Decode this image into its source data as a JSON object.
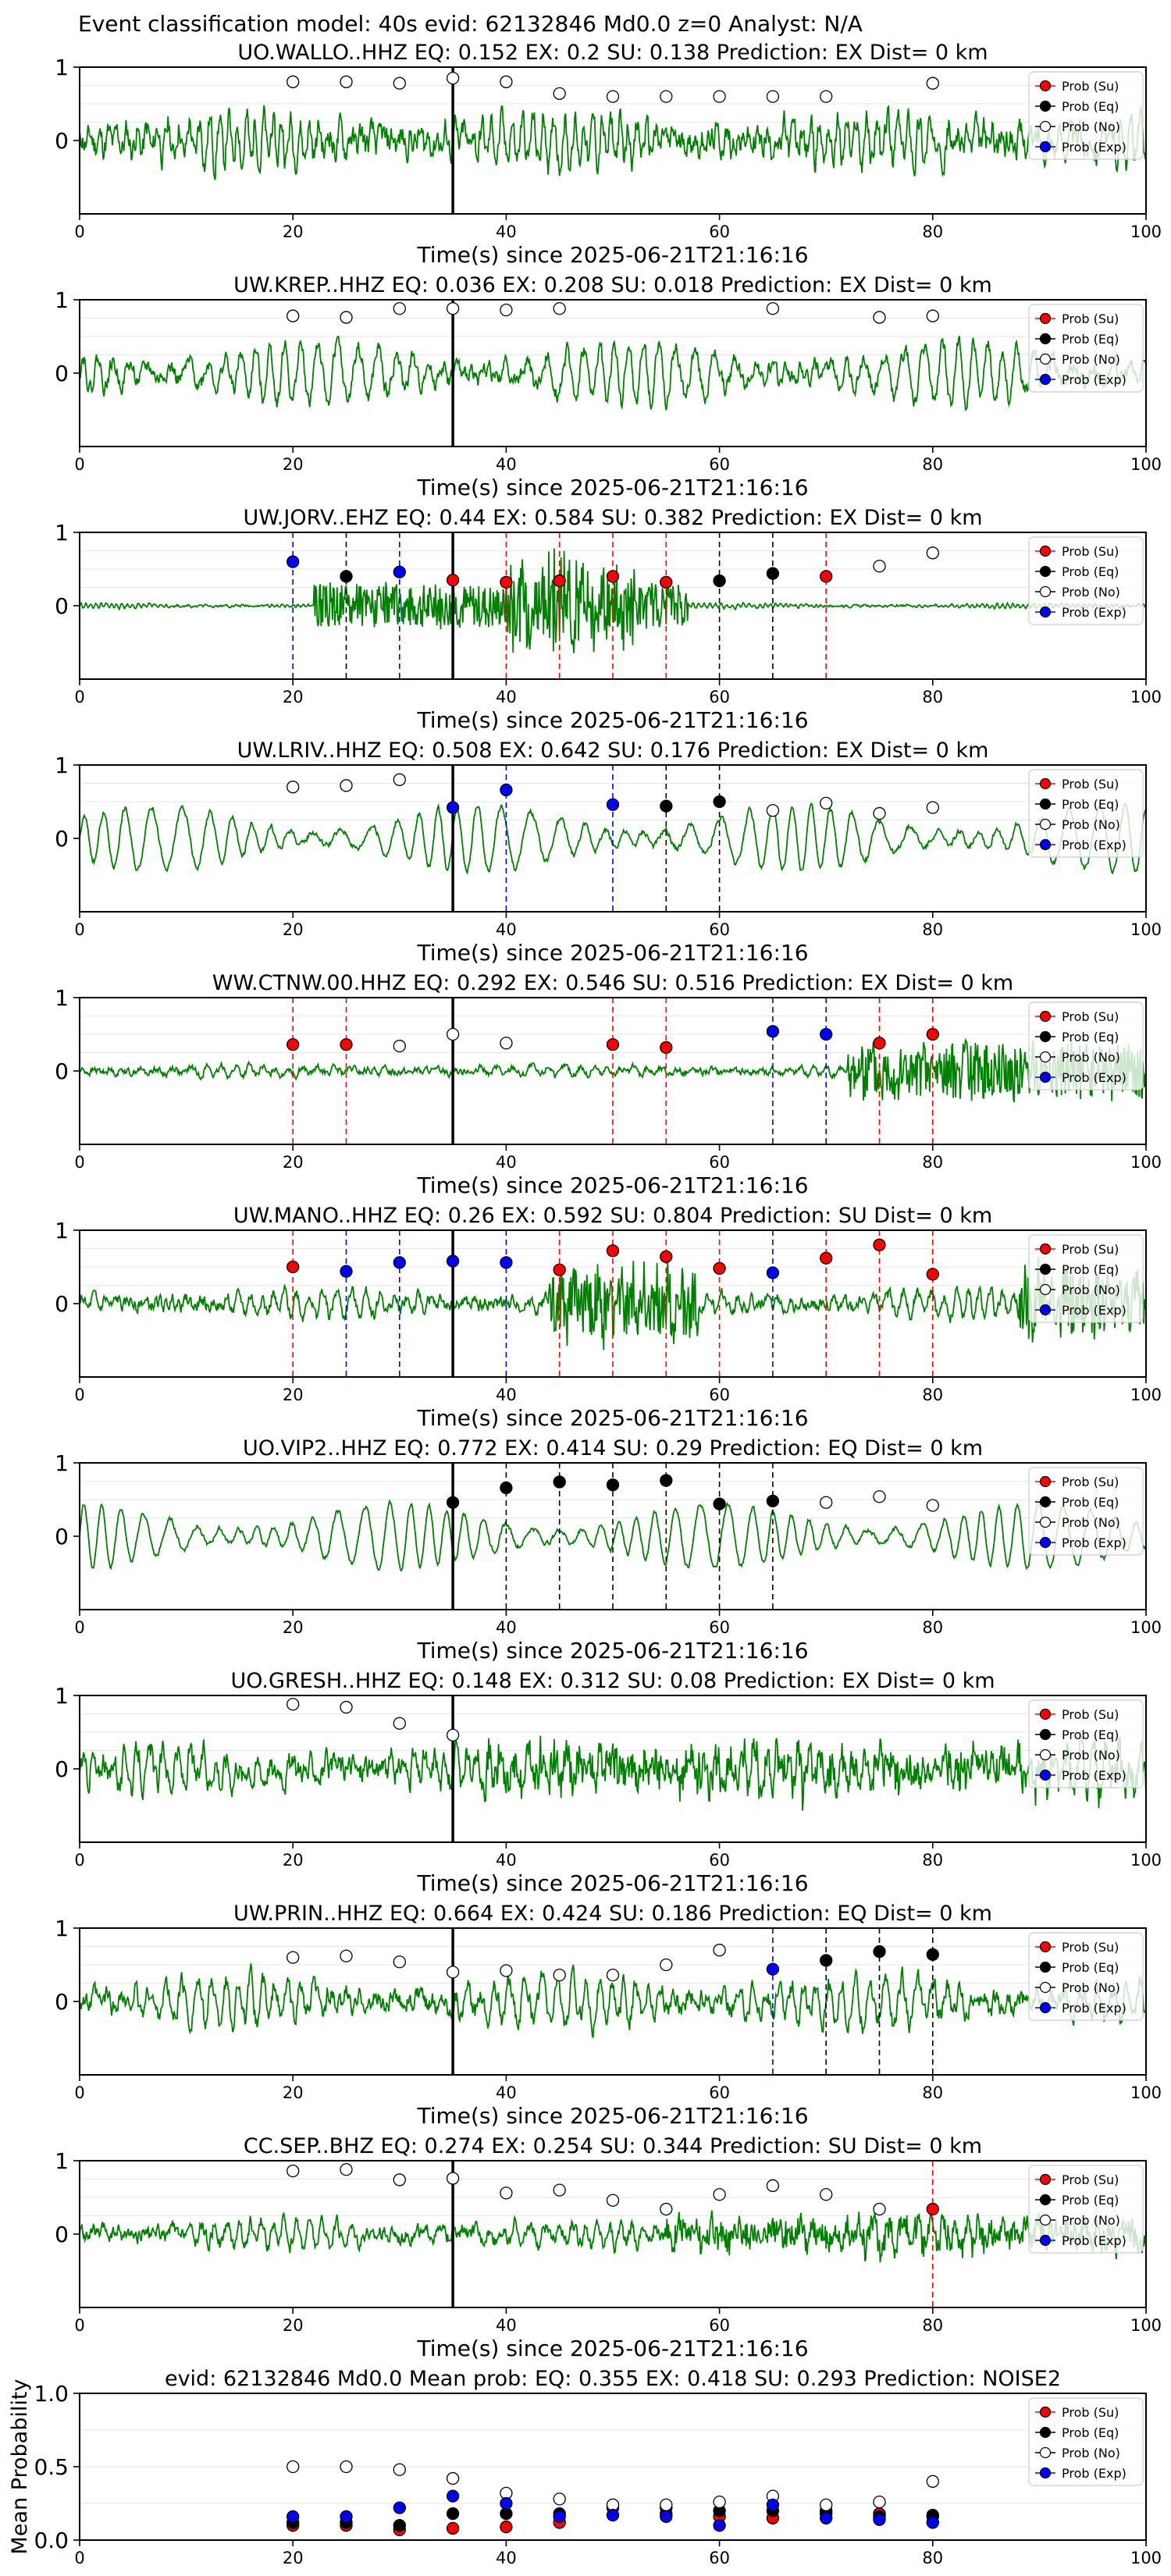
{
  "figure": {
    "suptitle": "Event classification model: 40s evid: 62132846 Md0.0 z=0 Analyst: N/A"
  },
  "colors": {
    "waveform": "#008000",
    "su": "#ff0000",
    "eq": "#000000",
    "no": "#ffffff",
    "exp": "#0000ff",
    "grid": "#e6e6e6"
  },
  "legend_labels": [
    "Prob (Su)",
    "Prob (Eq)",
    "Prob (No)",
    "Prob (Exp)"
  ],
  "xlabel": "Time(s) since 2025-06-21T21:16:16",
  "chart_data": [
    {
      "type": "scatter",
      "title": "UO.WALLO..HHZ   EQ: 0.152  EX: 0.2  SU: 0.138   Prediction: EX    Dist= 0 km",
      "xlim": [
        0,
        100
      ],
      "ylim": [
        -1,
        1
      ],
      "xticks": [
        0,
        20,
        40,
        60,
        80,
        100
      ],
      "yticks": [
        0,
        1
      ],
      "xlabel": "Time(s) since 2025-06-21T21:16:16",
      "event_time": 35,
      "waveform": {
        "amp": 0.55,
        "noise": 0.75,
        "period": 0.9,
        "seed": 11
      },
      "series": [
        {
          "name": "Prob (No)",
          "x": [
            20,
            25,
            30,
            35,
            40,
            45,
            50,
            55,
            60,
            65,
            70,
            80
          ],
          "y": [
            0.8,
            0.8,
            0.78,
            0.85,
            0.8,
            0.64,
            0.6,
            0.6,
            0.6,
            0.6,
            0.6,
            0.78
          ]
        }
      ],
      "lines": []
    },
    {
      "type": "scatter",
      "title": "UW.KREP..HHZ   EQ: 0.036  EX: 0.208  SU: 0.018   Prediction: EX    Dist= 0 km",
      "xlim": [
        0,
        100
      ],
      "ylim": [
        -1,
        1
      ],
      "xticks": [
        0,
        20,
        40,
        60,
        80,
        100
      ],
      "yticks": [
        0,
        1
      ],
      "xlabel": "Time(s) since 2025-06-21T21:16:16",
      "event_time": 35,
      "waveform": {
        "amp": 0.75,
        "noise": 0.45,
        "period": 1.6,
        "seed": 22
      },
      "series": [
        {
          "name": "Prob (No)",
          "x": [
            20,
            25,
            30,
            35,
            40,
            45,
            65,
            75,
            80
          ],
          "y": [
            0.78,
            0.76,
            0.88,
            0.88,
            0.86,
            0.88,
            0.88,
            0.76,
            0.78
          ]
        }
      ],
      "lines": []
    },
    {
      "type": "scatter",
      "title": "UW.JORV..EHZ   EQ: 0.44  EX: 0.584  SU: 0.382   Prediction: EX    Dist= 0 km",
      "xlim": [
        0,
        100
      ],
      "ylim": [
        -1,
        1
      ],
      "xticks": [
        0,
        20,
        40,
        60,
        80,
        100
      ],
      "yticks": [
        0,
        1
      ],
      "xlabel": "Time(s) since 2025-06-21T21:16:16",
      "event_time": 35,
      "waveform": {
        "amp": 0.05,
        "noise": 0.06,
        "period": 0.5,
        "seed": 33,
        "burst": [
          [
            22,
            57,
            0.55
          ],
          [
            40,
            52,
            0.9
          ]
        ]
      },
      "series": [
        {
          "name": "Prob (Exp)",
          "x": [
            20,
            30
          ],
          "y": [
            0.6,
            0.46
          ]
        },
        {
          "name": "Prob (Eq)",
          "x": [
            25,
            60,
            65
          ],
          "y": [
            0.4,
            0.34,
            0.44
          ]
        },
        {
          "name": "Prob (Su)",
          "x": [
            35,
            40,
            45,
            50,
            55,
            70
          ],
          "y": [
            0.35,
            0.32,
            0.34,
            0.4,
            0.32,
            0.4
          ]
        },
        {
          "name": "Prob (No)",
          "x": [
            75,
            80
          ],
          "y": [
            0.54,
            0.72
          ]
        }
      ],
      "lines": [
        {
          "x": 20,
          "c": "exp"
        },
        {
          "x": 25,
          "c": "eq"
        },
        {
          "x": 30,
          "c": "exp"
        },
        {
          "x": 40,
          "c": "su"
        },
        {
          "x": 45,
          "c": "su"
        },
        {
          "x": 50,
          "c": "su"
        },
        {
          "x": 55,
          "c": "su"
        },
        {
          "x": 60,
          "c": "eq"
        },
        {
          "x": 65,
          "c": "eq"
        },
        {
          "x": 70,
          "c": "su"
        }
      ]
    },
    {
      "type": "scatter",
      "title": "UW.LRIV..HHZ   EQ: 0.508  EX: 0.642  SU: 0.176   Prediction: EX    Dist= 0 km",
      "xlim": [
        0,
        100
      ],
      "ylim": [
        -1,
        1
      ],
      "xticks": [
        0,
        20,
        40,
        60,
        80,
        100
      ],
      "yticks": [
        0,
        1
      ],
      "xlabel": "Time(s) since 2025-06-21T21:16:16",
      "event_time": 35,
      "waveform": {
        "amp": 0.8,
        "noise": 0.15,
        "period": 2.2,
        "seed": 44
      },
      "series": [
        {
          "name": "Prob (No)",
          "x": [
            20,
            25,
            30,
            65,
            70,
            75,
            80
          ],
          "y": [
            0.7,
            0.72,
            0.8,
            0.38,
            0.48,
            0.34,
            0.42
          ]
        },
        {
          "name": "Prob (Exp)",
          "x": [
            35,
            40,
            50
          ],
          "y": [
            0.42,
            0.66,
            0.46
          ]
        },
        {
          "name": "Prob (Eq)",
          "x": [
            55,
            60
          ],
          "y": [
            0.44,
            0.5
          ]
        }
      ],
      "lines": [
        {
          "x": 40,
          "c": "exp"
        },
        {
          "x": 50,
          "c": "exp"
        },
        {
          "x": 55,
          "c": "eq"
        },
        {
          "x": 60,
          "c": "eq"
        }
      ]
    },
    {
      "type": "scatter",
      "title": "WW.CTNW.00.HHZ   EQ: 0.292  EX: 0.546  SU: 0.516   Prediction: EX    Dist= 0 km",
      "xlim": [
        0,
        100
      ],
      "ylim": [
        -1,
        1
      ],
      "xticks": [
        0,
        20,
        40,
        60,
        80,
        100
      ],
      "yticks": [
        0,
        1
      ],
      "xlabel": "Time(s) since 2025-06-21T21:16:16",
      "event_time": 35,
      "waveform": {
        "amp": 0.12,
        "noise": 0.18,
        "period": 1.4,
        "seed": 55,
        "burst": [
          [
            72,
            100,
            0.7
          ]
        ]
      },
      "series": [
        {
          "name": "Prob (Su)",
          "x": [
            20,
            25,
            50,
            55,
            75,
            80
          ],
          "y": [
            0.36,
            0.36,
            0.36,
            0.32,
            0.38,
            0.5
          ]
        },
        {
          "name": "Prob (No)",
          "x": [
            30,
            35,
            40
          ],
          "y": [
            0.34,
            0.5,
            0.38
          ]
        },
        {
          "name": "Prob (Exp)",
          "x": [
            65,
            70
          ],
          "y": [
            0.54,
            0.5
          ]
        }
      ],
      "lines": [
        {
          "x": 20,
          "c": "su"
        },
        {
          "x": 25,
          "c": "su"
        },
        {
          "x": 50,
          "c": "su"
        },
        {
          "x": 55,
          "c": "su"
        },
        {
          "x": 65,
          "c": "exp"
        },
        {
          "x": 70,
          "c": "exp"
        },
        {
          "x": 75,
          "c": "su"
        },
        {
          "x": 80,
          "c": "su"
        }
      ]
    },
    {
      "type": "scatter",
      "title": "UW.MANO..HHZ   EQ: 0.26  EX: 0.592  SU: 0.804   Prediction: SU    Dist= 0 km",
      "xlim": [
        0,
        100
      ],
      "ylim": [
        -1,
        1
      ],
      "xticks": [
        0,
        20,
        40,
        60,
        80,
        100
      ],
      "yticks": [
        0,
        1
      ],
      "xlabel": "Time(s) since 2025-06-21T21:16:16",
      "event_time": 35,
      "waveform": {
        "amp": 0.3,
        "noise": 0.35,
        "period": 1.2,
        "seed": 66,
        "burst": [
          [
            44,
            58,
            0.8
          ],
          [
            88,
            100,
            0.8
          ]
        ]
      },
      "series": [
        {
          "name": "Prob (Su)",
          "x": [
            20,
            45,
            50,
            55,
            60,
            70,
            75,
            80
          ],
          "y": [
            0.5,
            0.46,
            0.72,
            0.64,
            0.48,
            0.62,
            0.8,
            0.4
          ]
        },
        {
          "name": "Prob (Exp)",
          "x": [
            25,
            30,
            35,
            40,
            65
          ],
          "y": [
            0.44,
            0.56,
            0.58,
            0.56,
            0.42
          ]
        }
      ],
      "lines": [
        {
          "x": 20,
          "c": "su"
        },
        {
          "x": 25,
          "c": "exp"
        },
        {
          "x": 30,
          "c": "exp"
        },
        {
          "x": 40,
          "c": "exp"
        },
        {
          "x": 45,
          "c": "su"
        },
        {
          "x": 50,
          "c": "su"
        },
        {
          "x": 55,
          "c": "su"
        },
        {
          "x": 60,
          "c": "su"
        },
        {
          "x": 65,
          "c": "exp"
        },
        {
          "x": 70,
          "c": "su"
        },
        {
          "x": 75,
          "c": "su"
        },
        {
          "x": 80,
          "c": "su"
        }
      ]
    },
    {
      "type": "scatter",
      "title": "UO.VIP2..HHZ   EQ: 0.772  EX: 0.414  SU: 0.29   Prediction: EQ    Dist= 0 km",
      "xlim": [
        0,
        100
      ],
      "ylim": [
        -1,
        1
      ],
      "xticks": [
        0,
        20,
        40,
        60,
        80,
        100
      ],
      "yticks": [
        0,
        1
      ],
      "xlabel": "Time(s) since 2025-06-21T21:16:16",
      "event_time": 35,
      "waveform": {
        "amp": 0.8,
        "noise": 0.12,
        "period": 2.0,
        "seed": 77
      },
      "series": [
        {
          "name": "Prob (Eq)",
          "x": [
            35,
            40,
            45,
            50,
            55,
            60,
            65
          ],
          "y": [
            0.46,
            0.66,
            0.74,
            0.7,
            0.76,
            0.44,
            0.48
          ]
        },
        {
          "name": "Prob (No)",
          "x": [
            70,
            75,
            80
          ],
          "y": [
            0.46,
            0.54,
            0.42
          ]
        }
      ],
      "lines": [
        {
          "x": 40,
          "c": "eq"
        },
        {
          "x": 45,
          "c": "eq"
        },
        {
          "x": 50,
          "c": "eq"
        },
        {
          "x": 55,
          "c": "eq"
        },
        {
          "x": 60,
          "c": "eq"
        },
        {
          "x": 65,
          "c": "eq"
        }
      ]
    },
    {
      "type": "scatter",
      "title": "UO.GRESH..HHZ   EQ: 0.148  EX: 0.312  SU: 0.08   Prediction: EX    Dist= 0 km",
      "xlim": [
        0,
        100
      ],
      "ylim": [
        -1,
        1
      ],
      "xticks": [
        0,
        20,
        40,
        60,
        80,
        100
      ],
      "yticks": [
        0,
        1
      ],
      "xlabel": "Time(s) since 2025-06-21T21:16:16",
      "event_time": 35,
      "waveform": {
        "amp": 0.4,
        "noise": 0.7,
        "period": 1.1,
        "seed": 88,
        "burst": [
          [
            38,
            100,
            0.35
          ]
        ]
      },
      "series": [
        {
          "name": "Prob (No)",
          "x": [
            20,
            25,
            30,
            35
          ],
          "y": [
            0.88,
            0.84,
            0.62,
            0.46
          ]
        }
      ],
      "lines": []
    },
    {
      "type": "scatter",
      "title": "UW.PRIN..HHZ   EQ: 0.664  EX: 0.424  SU: 0.186   Prediction: EQ    Dist= 0 km",
      "xlim": [
        0,
        100
      ],
      "ylim": [
        -1,
        1
      ],
      "xticks": [
        0,
        20,
        40,
        60,
        80,
        100
      ],
      "yticks": [
        0,
        1
      ],
      "xlabel": "Time(s) since 2025-06-21T21:16:16",
      "event_time": 35,
      "waveform": {
        "amp": 0.55,
        "noise": 0.55,
        "period": 1.3,
        "seed": 99
      },
      "series": [
        {
          "name": "Prob (No)",
          "x": [
            20,
            25,
            30,
            35,
            40,
            45,
            50,
            55,
            60
          ],
          "y": [
            0.6,
            0.62,
            0.54,
            0.4,
            0.42,
            0.36,
            0.36,
            0.5,
            0.7
          ]
        },
        {
          "name": "Prob (Exp)",
          "x": [
            65
          ],
          "y": [
            0.44
          ]
        },
        {
          "name": "Prob (Eq)",
          "x": [
            70,
            75,
            80
          ],
          "y": [
            0.56,
            0.68,
            0.64
          ]
        }
      ],
      "lines": [
        {
          "x": 65,
          "c": "exp"
        },
        {
          "x": 70,
          "c": "eq"
        },
        {
          "x": 75,
          "c": "eq"
        },
        {
          "x": 80,
          "c": "eq"
        }
      ]
    },
    {
      "type": "scatter",
      "title": "CC.SEP..BHZ   EQ: 0.274  EX: 0.254  SU: 0.344   Prediction: SU    Dist= 0 km",
      "xlim": [
        0,
        100
      ],
      "ylim": [
        -1,
        1
      ],
      "xticks": [
        0,
        20,
        40,
        60,
        80,
        100
      ],
      "yticks": [
        0,
        1
      ],
      "xlabel": "Time(s) since 2025-06-21T21:16:16",
      "event_time": 35,
      "waveform": {
        "amp": 0.3,
        "noise": 0.4,
        "period": 1.2,
        "seed": 111,
        "burst": [
          [
            55,
            100,
            0.3
          ]
        ]
      },
      "series": [
        {
          "name": "Prob (No)",
          "x": [
            20,
            25,
            30,
            35,
            40,
            45,
            50,
            55,
            60,
            65,
            70,
            75
          ],
          "y": [
            0.86,
            0.88,
            0.74,
            0.76,
            0.56,
            0.6,
            0.46,
            0.34,
            0.54,
            0.66,
            0.54,
            0.34
          ]
        },
        {
          "name": "Prob (Su)",
          "x": [
            80
          ],
          "y": [
            0.34
          ]
        }
      ],
      "lines": [
        {
          "x": 80,
          "c": "su"
        }
      ]
    },
    {
      "type": "scatter",
      "title": "evid: 62132846   Md0.0    Mean prob:    EQ: 0.355   EX: 0.418   SU: 0.293    Prediction: NOISE2",
      "xlim": [
        0,
        100
      ],
      "ylim": [
        0,
        1
      ],
      "xticks": [
        0,
        20,
        40,
        60,
        80,
        100
      ],
      "yticks": [
        0.0,
        0.5,
        1.0
      ],
      "ylabel": "Mean Probability",
      "mean_panel": true,
      "series": [
        {
          "name": "Prob (Su)",
          "x": [
            20,
            25,
            30,
            35,
            40,
            45,
            50,
            55,
            60,
            65,
            70,
            75,
            80
          ],
          "y": [
            0.1,
            0.1,
            0.07,
            0.08,
            0.09,
            0.12,
            0.22,
            0.18,
            0.16,
            0.15,
            0.18,
            0.18,
            0.17
          ]
        },
        {
          "name": "Prob (Eq)",
          "x": [
            20,
            25,
            30,
            35,
            40,
            45,
            50,
            55,
            60,
            65,
            70,
            75,
            80
          ],
          "y": [
            0.12,
            0.12,
            0.1,
            0.18,
            0.18,
            0.18,
            0.24,
            0.22,
            0.2,
            0.2,
            0.2,
            0.16,
            0.16
          ]
        },
        {
          "name": "Prob (No)",
          "x": [
            20,
            25,
            30,
            35,
            40,
            45,
            50,
            55,
            60,
            65,
            70,
            75,
            80
          ],
          "y": [
            0.5,
            0.5,
            0.48,
            0.42,
            0.32,
            0.28,
            0.24,
            0.24,
            0.26,
            0.3,
            0.24,
            0.26,
            0.4
          ]
        },
        {
          "name": "Prob (Exp)",
          "x": [
            20,
            25,
            30,
            35,
            40,
            45,
            50,
            55,
            60,
            65,
            70,
            75,
            80
          ],
          "y": [
            0.16,
            0.16,
            0.22,
            0.3,
            0.25,
            0.16,
            0.17,
            0.16,
            0.1,
            0.24,
            0.15,
            0.14,
            0.12
          ]
        }
      ],
      "lines": []
    }
  ]
}
